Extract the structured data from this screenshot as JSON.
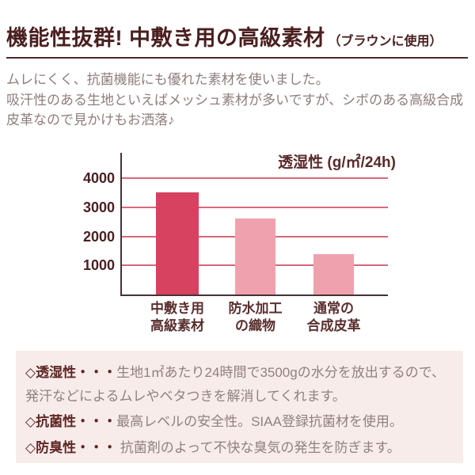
{
  "header": {
    "title": "機能性抜群! 中敷き用の高級素材",
    "subtitle": "（ブラウンに使用）"
  },
  "intro": {
    "line1": "ムレにくく、抗菌機能にも優れた素材を使いました。",
    "line2": "吸汗性のある生地といえばメッシュ素材が多いですが、シボのある高級合成皮革なので見かけもお洒落♪"
  },
  "chart_data": {
    "type": "bar",
    "title": "透湿性 (g/㎡/24h)",
    "categories": [
      "中敷き用\n高級素材",
      "防水加工\nの織物",
      "通常の\n合成皮革"
    ],
    "values": [
      3500,
      2600,
      1400
    ],
    "yticks": [
      1000,
      2000,
      3000,
      4000
    ],
    "ylim": [
      0,
      4000
    ],
    "grid": true,
    "legend": "none",
    "bar_colors": [
      "#d64260",
      "#efa1ae",
      "#efa1ae"
    ],
    "gridline_color": "#d5697a",
    "axis_color": "#443235"
  },
  "features": {
    "bullet": "◇",
    "items": [
      {
        "term": "透湿性",
        "dots": "・・・",
        "desc": "生地1㎡あたり24時間で3500gの水分を放出するので、発汗などによるムレやベタつきを解消してくれます。"
      },
      {
        "term": "抗菌性",
        "dots": "・・・",
        "desc": "最高レベルの安全性。SIAA登録抗菌材を使用。"
      },
      {
        "term": "防臭性",
        "dots": "・・・",
        "desc": " 抗菌剤のよって不快な臭気の発生を防ぎます。"
      }
    ]
  },
  "colors": {
    "heading": "#4a1f1f",
    "body_text": "#8f7d7d",
    "accent_bar": "#d64260",
    "light_bar": "#efa1ae",
    "box_background": "#f7ecea"
  }
}
